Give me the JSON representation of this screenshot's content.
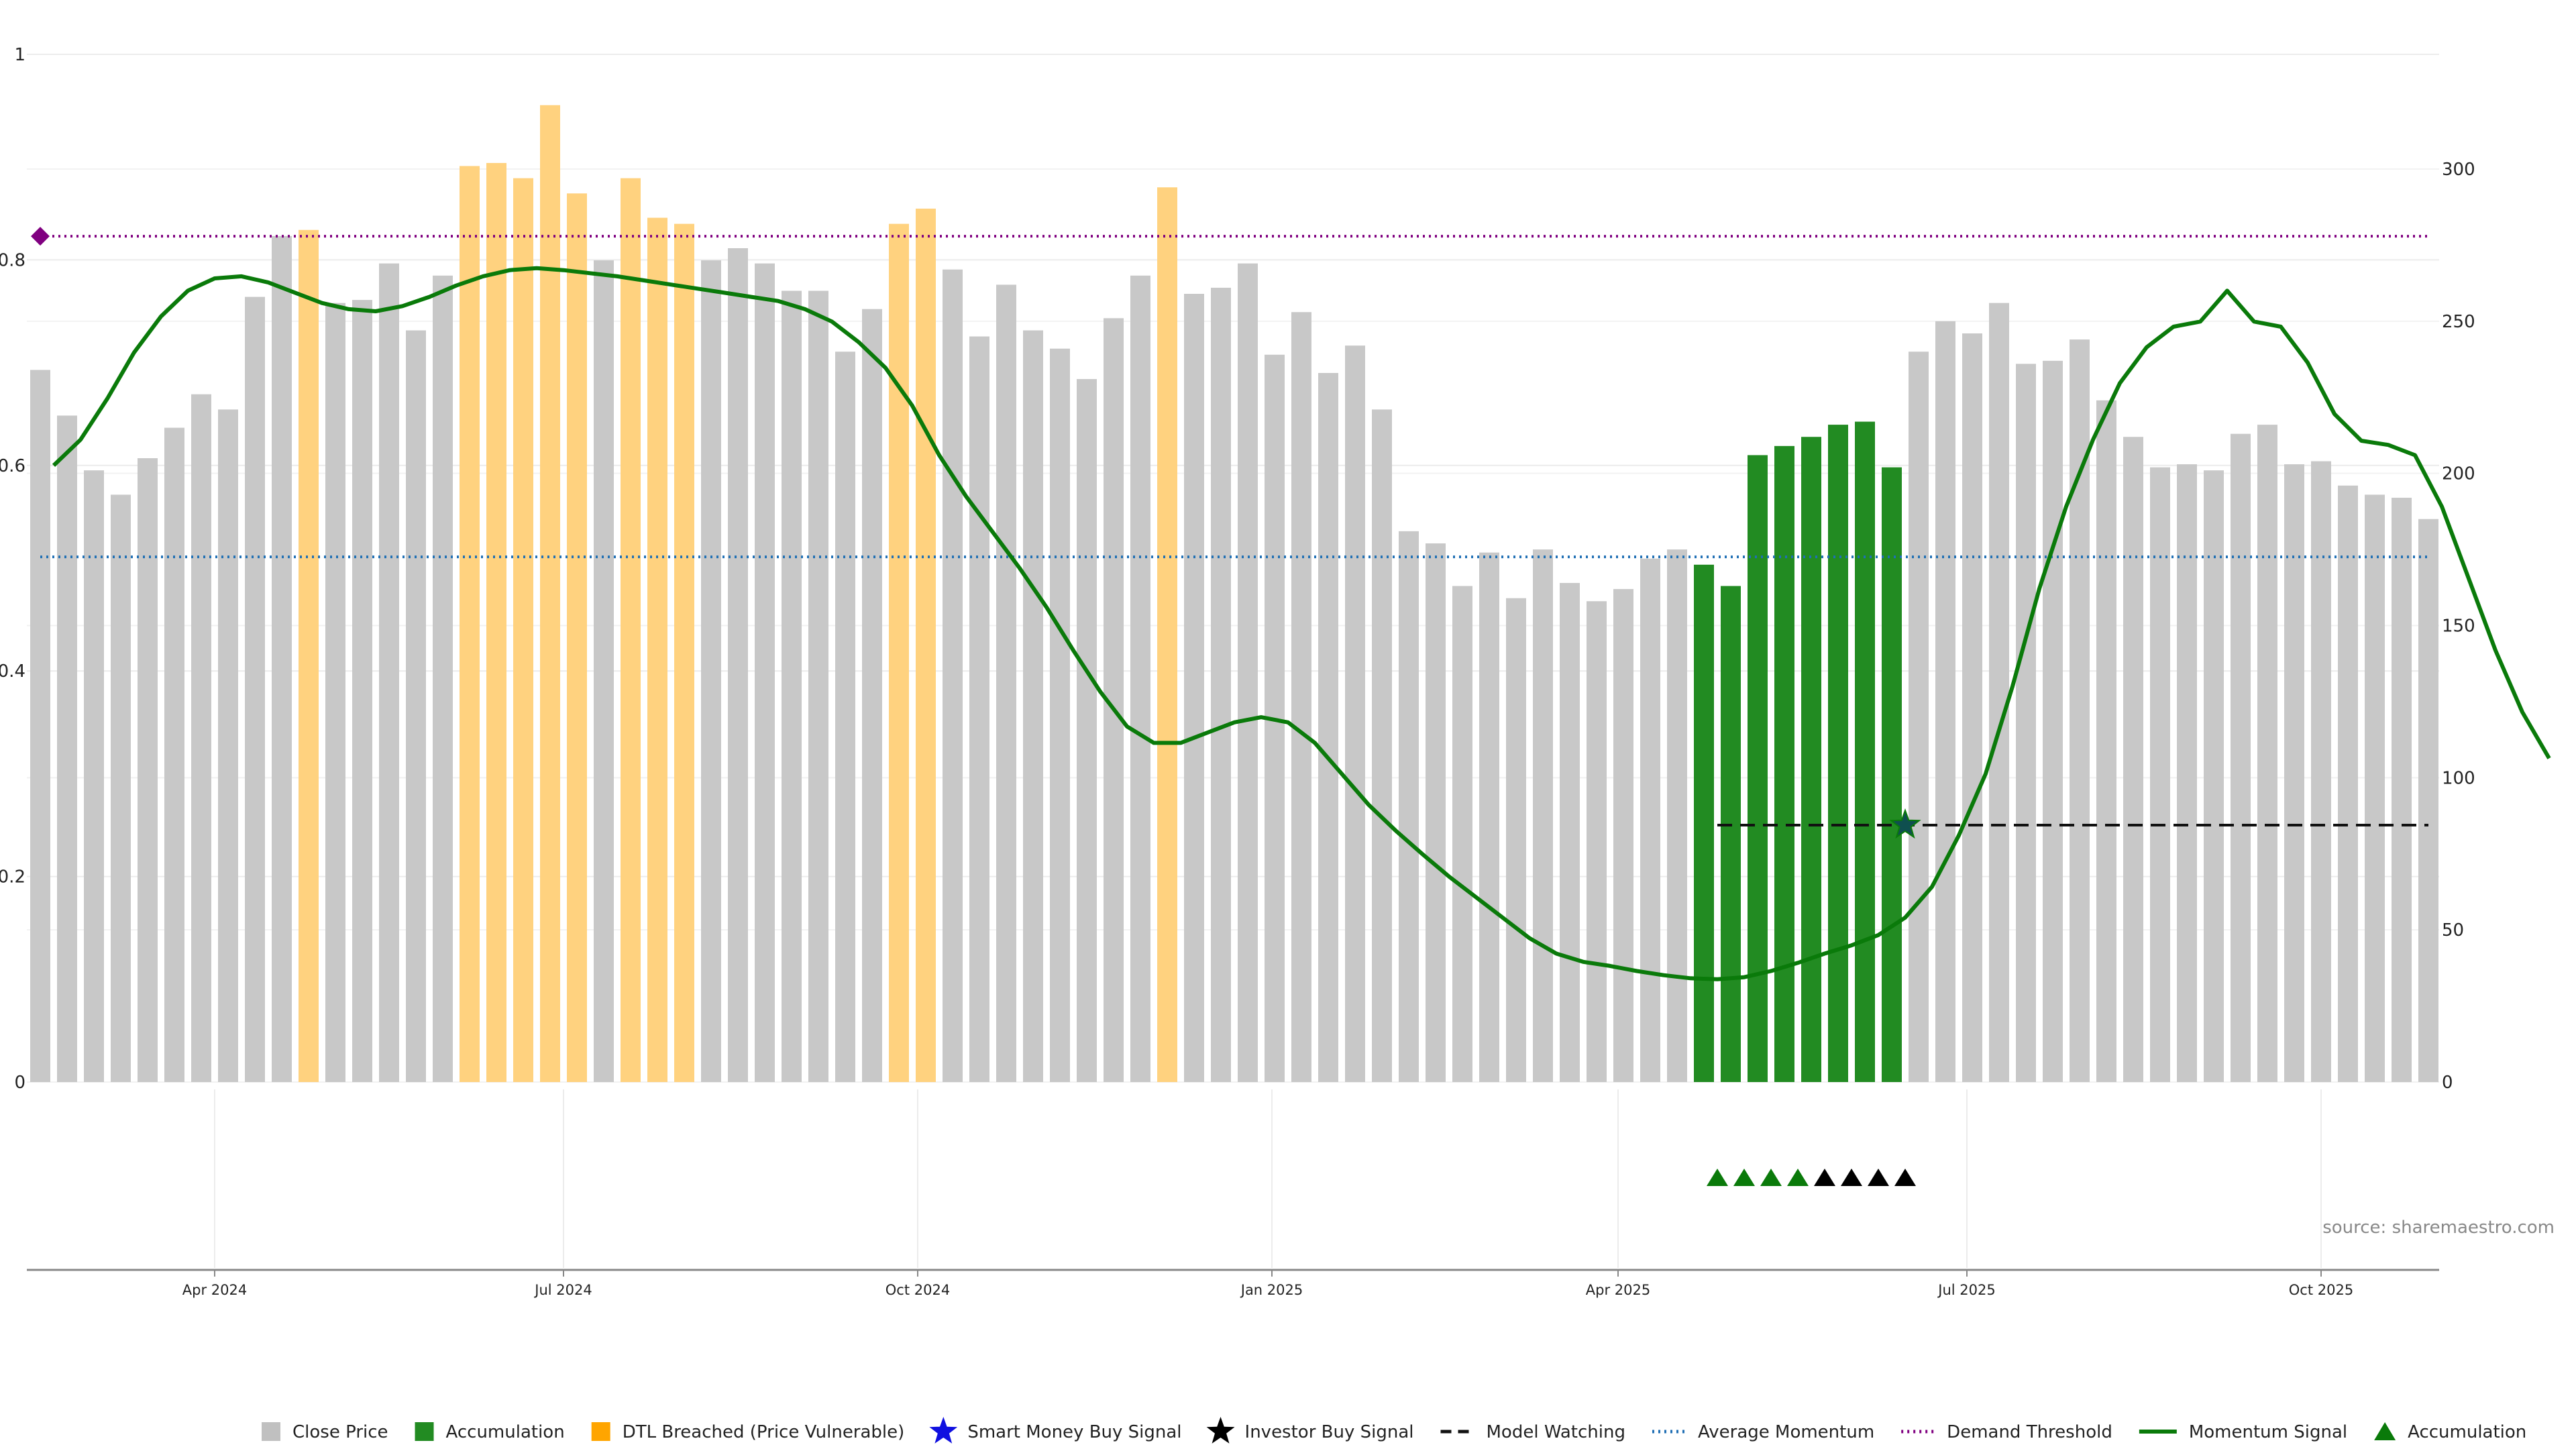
{
  "chart_data": {
    "type": "bar",
    "source": "source: sharemaestro.com",
    "left_axis": {
      "ticks": [
        "0",
        "0.2",
        "0.4",
        "0.6",
        "0.8",
        "1"
      ],
      "range": [
        0,
        1
      ]
    },
    "right_axis": {
      "ticks": [
        "0",
        "50",
        "100",
        "150",
        "200",
        "250",
        "300"
      ],
      "range": [
        0,
        337.7
      ]
    },
    "x_axis": {
      "ticks": [
        {
          "label": "Apr 2024",
          "week": 6.5
        },
        {
          "label": "Jul 2024",
          "week": 19.5
        },
        {
          "label": "Oct 2024",
          "week": 32.7
        },
        {
          "label": "Jan 2025",
          "week": 45.9
        },
        {
          "label": "Apr 2025",
          "week": 58.8
        },
        {
          "label": "Jul 2025",
          "week": 71.8
        },
        {
          "label": "Oct 2025",
          "week": 85.0
        }
      ]
    },
    "colors": {
      "close": "#c8c8c8",
      "accumulation": "#228b22",
      "breached": "#ffd27f",
      "momentum": "#0a7a0a",
      "average": "#1f6fb4",
      "demand": "#800080",
      "watching": "#111111",
      "smart_money": "#1010e0",
      "investor": "#000000"
    },
    "bars": [
      {
        "v": 234,
        "s": "close"
      },
      {
        "v": 219,
        "s": "close"
      },
      {
        "v": 201,
        "s": "close"
      },
      {
        "v": 193,
        "s": "close"
      },
      {
        "v": 205,
        "s": "close"
      },
      {
        "v": 215,
        "s": "close"
      },
      {
        "v": 226,
        "s": "close"
      },
      {
        "v": 221,
        "s": "close"
      },
      {
        "v": 258,
        "s": "close"
      },
      {
        "v": 278,
        "s": "close"
      },
      {
        "v": 280,
        "s": "breached"
      },
      {
        "v": 256,
        "s": "close"
      },
      {
        "v": 257,
        "s": "close"
      },
      {
        "v": 269,
        "s": "close"
      },
      {
        "v": 247,
        "s": "close"
      },
      {
        "v": 265,
        "s": "close"
      },
      {
        "v": 301,
        "s": "breached"
      },
      {
        "v": 302,
        "s": "breached"
      },
      {
        "v": 297,
        "s": "breached"
      },
      {
        "v": 321,
        "s": "breached"
      },
      {
        "v": 292,
        "s": "breached"
      },
      {
        "v": 270,
        "s": "close"
      },
      {
        "v": 297,
        "s": "breached"
      },
      {
        "v": 284,
        "s": "breached"
      },
      {
        "v": 282,
        "s": "breached"
      },
      {
        "v": 270,
        "s": "close"
      },
      {
        "v": 274,
        "s": "close"
      },
      {
        "v": 269,
        "s": "close"
      },
      {
        "v": 260,
        "s": "close"
      },
      {
        "v": 260,
        "s": "close"
      },
      {
        "v": 240,
        "s": "close"
      },
      {
        "v": 254,
        "s": "close"
      },
      {
        "v": 282,
        "s": "breached"
      },
      {
        "v": 287,
        "s": "breached"
      },
      {
        "v": 267,
        "s": "close"
      },
      {
        "v": 245,
        "s": "close"
      },
      {
        "v": 262,
        "s": "close"
      },
      {
        "v": 247,
        "s": "close"
      },
      {
        "v": 241,
        "s": "close"
      },
      {
        "v": 231,
        "s": "close"
      },
      {
        "v": 251,
        "s": "close"
      },
      {
        "v": 265,
        "s": "close"
      },
      {
        "v": 294,
        "s": "breached"
      },
      {
        "v": 259,
        "s": "close"
      },
      {
        "v": 261,
        "s": "close"
      },
      {
        "v": 269,
        "s": "close"
      },
      {
        "v": 239,
        "s": "close"
      },
      {
        "v": 253,
        "s": "close"
      },
      {
        "v": 233,
        "s": "close"
      },
      {
        "v": 242,
        "s": "close"
      },
      {
        "v": 221,
        "s": "close"
      },
      {
        "v": 181,
        "s": "close"
      },
      {
        "v": 177,
        "s": "close"
      },
      {
        "v": 163,
        "s": "close"
      },
      {
        "v": 174,
        "s": "close"
      },
      {
        "v": 159,
        "s": "close"
      },
      {
        "v": 175,
        "s": "close"
      },
      {
        "v": 164,
        "s": "close"
      },
      {
        "v": 158,
        "s": "close"
      },
      {
        "v": 162,
        "s": "close"
      },
      {
        "v": 172,
        "s": "close"
      },
      {
        "v": 175,
        "s": "close"
      },
      {
        "v": 170,
        "s": "accumulation"
      },
      {
        "v": 163,
        "s": "accumulation"
      },
      {
        "v": 206,
        "s": "accumulation"
      },
      {
        "v": 209,
        "s": "accumulation"
      },
      {
        "v": 212,
        "s": "accumulation"
      },
      {
        "v": 216,
        "s": "accumulation"
      },
      {
        "v": 217,
        "s": "accumulation"
      },
      {
        "v": 202,
        "s": "accumulation"
      },
      {
        "v": 240,
        "s": "close"
      },
      {
        "v": 250,
        "s": "close"
      },
      {
        "v": 246,
        "s": "close"
      },
      {
        "v": 256,
        "s": "close"
      },
      {
        "v": 236,
        "s": "close"
      },
      {
        "v": 237,
        "s": "close"
      },
      {
        "v": 244,
        "s": "close"
      },
      {
        "v": 224,
        "s": "close"
      },
      {
        "v": 212,
        "s": "close"
      },
      {
        "v": 202,
        "s": "close"
      },
      {
        "v": 203,
        "s": "close"
      },
      {
        "v": 201,
        "s": "close"
      },
      {
        "v": 213,
        "s": "close"
      },
      {
        "v": 216,
        "s": "close"
      },
      {
        "v": 203,
        "s": "close"
      },
      {
        "v": 204,
        "s": "close"
      },
      {
        "v": 196,
        "s": "close"
      },
      {
        "v": 193,
        "s": "close"
      },
      {
        "v": 192,
        "s": "close"
      },
      {
        "v": 185,
        "s": "close"
      }
    ],
    "momentum_signal": [
      0.6,
      0.625,
      0.665,
      0.71,
      0.745,
      0.77,
      0.782,
      0.784,
      0.778,
      0.768,
      0.758,
      0.752,
      0.75,
      0.755,
      0.764,
      0.775,
      0.784,
      0.79,
      0.792,
      0.79,
      0.787,
      0.784,
      0.78,
      0.776,
      0.772,
      0.768,
      0.764,
      0.76,
      0.752,
      0.74,
      0.72,
      0.695,
      0.658,
      0.61,
      0.57,
      0.535,
      0.5,
      0.462,
      0.42,
      0.38,
      0.346,
      0.33,
      0.33,
      0.34,
      0.35,
      0.355,
      0.35,
      0.33,
      0.3,
      0.27,
      0.245,
      0.222,
      0.2,
      0.18,
      0.16,
      0.14,
      0.125,
      0.117,
      0.113,
      0.108,
      0.104,
      0.101,
      0.1,
      0.102,
      0.108,
      0.116,
      0.125,
      0.133,
      0.143,
      0.16,
      0.19,
      0.24,
      0.3,
      0.385,
      0.48,
      0.56,
      0.625,
      0.68,
      0.715,
      0.735,
      0.74,
      0.77,
      0.74,
      0.735,
      0.7,
      0.65,
      0.624,
      0.62,
      0.61,
      0.56,
      0.49,
      0.42,
      0.36,
      0.315
    ],
    "momentum_start_week": 0.5,
    "average_momentum": 0.511,
    "demand_threshold": 0.823,
    "demand_marker_week": 0.0,
    "model_watching": {
      "level": 0.25,
      "from_week": 62.5,
      "to_week": 89.0
    },
    "smart_money_signal": {
      "week": 69.5,
      "value": 0.25
    },
    "accumulation_markers": [
      {
        "week": 62.5,
        "type": "accumulation"
      },
      {
        "week": 63.5,
        "type": "accumulation"
      },
      {
        "week": 64.5,
        "type": "accumulation"
      },
      {
        "week": 65.5,
        "type": "accumulation"
      },
      {
        "week": 66.5,
        "type": "investor"
      },
      {
        "week": 67.5,
        "type": "investor"
      },
      {
        "week": 68.5,
        "type": "investor"
      },
      {
        "week": 69.5,
        "type": "investor"
      }
    ],
    "legend": [
      {
        "label": "Close Price",
        "kind": "square",
        "color": "#c0c0c0"
      },
      {
        "label": "Accumulation",
        "kind": "square",
        "color": "#228b22"
      },
      {
        "label": "DTL Breached (Price Vulnerable)",
        "kind": "square",
        "color": "#ffa500"
      },
      {
        "label": "Smart Money Buy Signal",
        "kind": "star",
        "color": "#1010e0"
      },
      {
        "label": "Investor Buy Signal",
        "kind": "star",
        "color": "#000000"
      },
      {
        "label": "Model Watching",
        "kind": "dash",
        "color": "#111111"
      },
      {
        "label": "Average Momentum",
        "kind": "dot",
        "color": "#1f6fb4"
      },
      {
        "label": "Demand Threshold",
        "kind": "dot",
        "color": "#800080"
      },
      {
        "label": "Momentum Signal",
        "kind": "line",
        "color": "#0a7a0a"
      },
      {
        "label": "Accumulation",
        "kind": "triangle",
        "color": "#0a7a0a"
      }
    ]
  }
}
